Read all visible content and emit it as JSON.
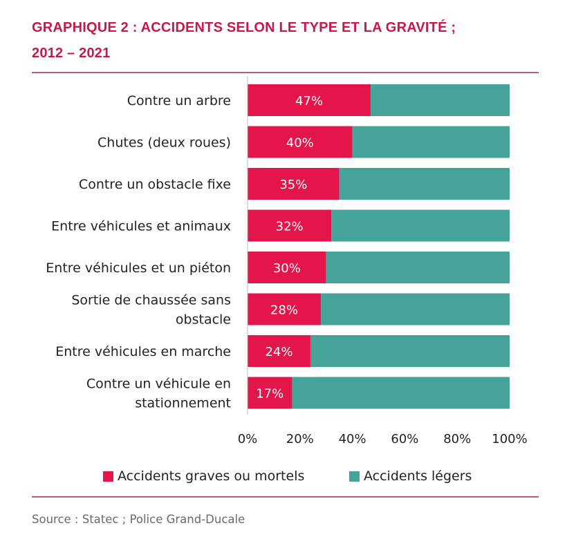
{
  "title_line1": "GRAPHIQUE 2 : ACCIDENTS SELON LE TYPE ET LA GRAVITÉ ;",
  "title_line2": "2012 – 2021",
  "source": "Source : Statec ; Police Grand-Ducale",
  "colors": {
    "grave": "#e4154b",
    "leger": "#45a399",
    "title": "#c8184a"
  },
  "chart_data": {
    "type": "bar",
    "orientation": "horizontal",
    "stacked": true,
    "percent": true,
    "categories": [
      [
        "Contre un arbre"
      ],
      [
        "Chutes (deux roues)"
      ],
      [
        "Contre un obstacle fixe"
      ],
      [
        "Entre véhicules et animaux"
      ],
      [
        "Entre véhicules et un piéton"
      ],
      [
        "Sortie de chaussée sans",
        "obstacle"
      ],
      [
        "Entre véhicules en marche"
      ],
      [
        "Contre un véhicule en",
        "stationnement"
      ]
    ],
    "series": [
      {
        "name": "Accidents graves ou mortels",
        "values": [
          47,
          40,
          35,
          32,
          30,
          28,
          24,
          17
        ],
        "labels": [
          "47%",
          "40%",
          "35%",
          "32%",
          "30%",
          "28%",
          "24%",
          "17%"
        ]
      },
      {
        "name": "Accidents légers",
        "values": [
          53,
          60,
          65,
          68,
          70,
          72,
          76,
          83
        ]
      }
    ],
    "xlim": [
      0,
      100
    ],
    "xticks": [
      "0%",
      "20%",
      "40%",
      "60%",
      "80%",
      "100%"
    ],
    "legend": "bottom"
  }
}
